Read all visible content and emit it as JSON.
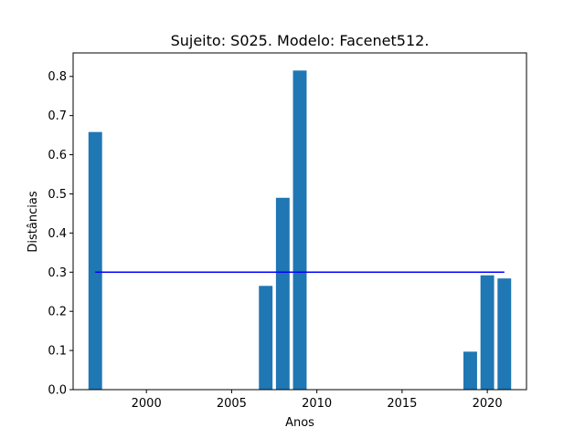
{
  "chart_data": {
    "type": "bar",
    "title": "Sujeito: S025. Modelo: Facenet512.",
    "xlabel": "Anos",
    "ylabel": "Distâncias",
    "xlim": [
      1995.7,
      2022.3
    ],
    "ylim": [
      0,
      0.86
    ],
    "xticks": [
      2000,
      2005,
      2010,
      2015,
      2020
    ],
    "yticks": [
      0.0,
      0.1,
      0.2,
      0.3,
      0.4,
      0.5,
      0.6,
      0.7,
      0.8
    ],
    "bar_width_years": 0.8,
    "bar_color": "#1f77b4",
    "bars": [
      {
        "x": 1997,
        "value": 0.658
      },
      {
        "x": 2007,
        "value": 0.265
      },
      {
        "x": 2008,
        "value": 0.49
      },
      {
        "x": 2009,
        "value": 0.815
      },
      {
        "x": 2019,
        "value": 0.097
      },
      {
        "x": 2020,
        "value": 0.292
      },
      {
        "x": 2021,
        "value": 0.284
      }
    ],
    "threshold": {
      "value": 0.3,
      "x_start": 1997,
      "x_end": 2021,
      "color": "#0000ff"
    },
    "grid": false,
    "legend": "none"
  }
}
